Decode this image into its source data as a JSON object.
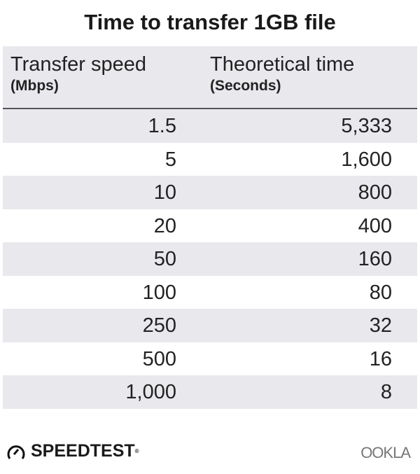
{
  "title": "Time to transfer 1GB file",
  "chart_data": {
    "type": "table",
    "title": "Time to transfer 1GB file",
    "columns": [
      {
        "label": "Transfer speed",
        "unit": "(Mbps)"
      },
      {
        "label": "Theoretical time",
        "unit": "(Seconds)"
      }
    ],
    "rows": [
      [
        "1.5",
        "5,333"
      ],
      [
        "5",
        "1,600"
      ],
      [
        "10",
        "800"
      ],
      [
        "20",
        "400"
      ],
      [
        "50",
        "160"
      ],
      [
        "100",
        "80"
      ],
      [
        "250",
        "32"
      ],
      [
        "500",
        "16"
      ],
      [
        "1,000",
        "8"
      ]
    ]
  },
  "logos": {
    "left": "SPEEDTEST",
    "right": "OOKLA"
  },
  "colors": {
    "header_bg": "#e9e8ed",
    "stripe": "#e9e8ed"
  }
}
